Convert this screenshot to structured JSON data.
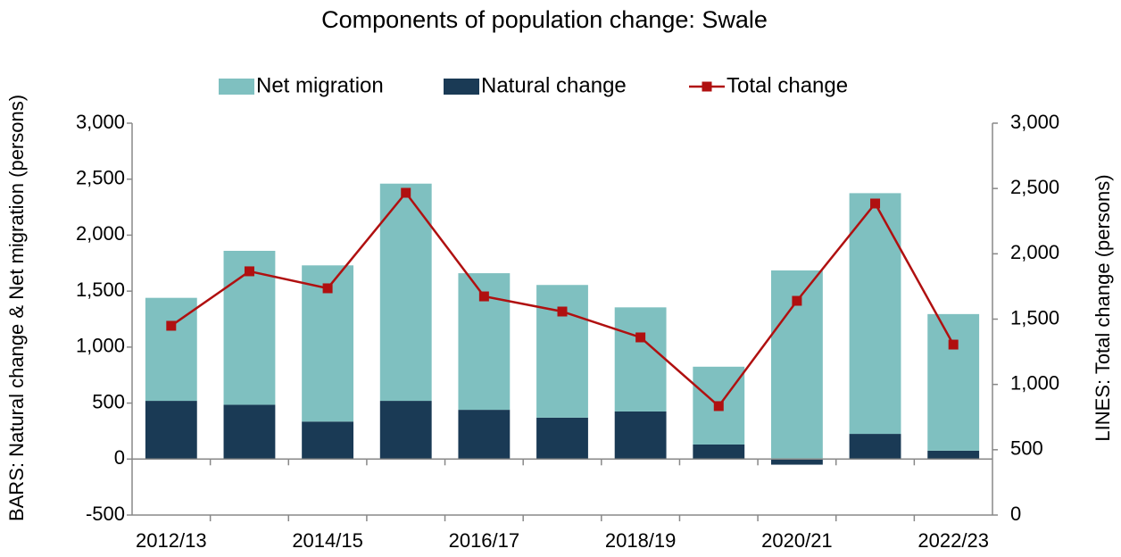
{
  "chart_data": {
    "type": "bar",
    "title": "Components of population change: Swale",
    "y_label": "BARS: Natural change & Net migration (persons)",
    "y2_label": "LINES: Total change (persons)",
    "categories": [
      "2012/13",
      null,
      "2014/15",
      null,
      "2016/17",
      null,
      "2018/19",
      null,
      "2020/21",
      null,
      "2022/23"
    ],
    "series": [
      {
        "name": "Net migration",
        "type": "bar",
        "color": "#7fc0c0",
        "values": [
          920,
          1375,
          1395,
          1940,
          1220,
          1185,
          930,
          695,
          1685,
          2150,
          1220
        ]
      },
      {
        "name": "Natural change",
        "type": "bar",
        "color": "#1a3a55",
        "values": [
          520,
          485,
          335,
          520,
          440,
          370,
          425,
          130,
          -50,
          225,
          75
        ]
      },
      {
        "name": "Total change",
        "type": "line",
        "axis": "y2",
        "color": "#b01010",
        "values": [
          1449,
          1866,
          1736,
          2467,
          1674,
          1558,
          1360,
          834,
          1640,
          2385,
          1305
        ]
      }
    ],
    "ylim": [
      -500,
      3000
    ],
    "yticks": [
      -500,
      0,
      500,
      {
        "value": 1000,
        "label": "1,000"
      },
      {
        "value": 1500,
        "label": "1,500"
      },
      {
        "value": 2000,
        "label": "2,000"
      },
      {
        "value": 2500,
        "label": "2,500"
      },
      {
        "value": 3000,
        "label": "3,000"
      }
    ],
    "y2lim": [
      0,
      3000
    ],
    "y2ticks": [
      0,
      500,
      {
        "value": 1000,
        "label": "1,000"
      },
      {
        "value": 1500,
        "label": "1,500"
      },
      {
        "value": 2000,
        "label": "2,000"
      },
      {
        "value": 2500,
        "label": "2,500"
      },
      {
        "value": 3000,
        "label": "3,000"
      }
    ],
    "negative_tick_color": "#ff0000",
    "legend": "top",
    "grid": false
  }
}
